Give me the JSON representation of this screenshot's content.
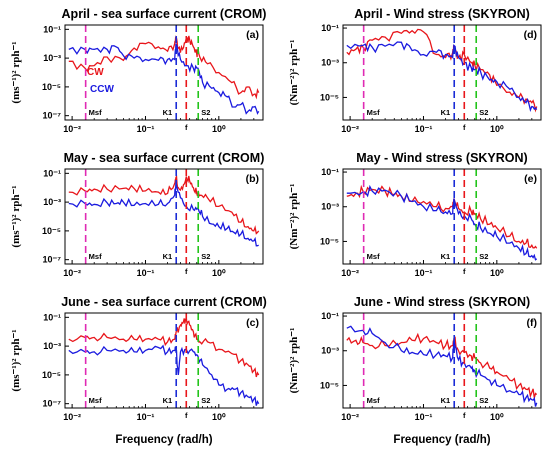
{
  "figure": {
    "xlabel_left": "Frequency (rad/h)",
    "xlabel_right": "Frequency (rad/h)"
  },
  "colors": {
    "cw": "#e8161b",
    "ccw": "#1a1adf",
    "msf": "#e02ab4",
    "k1": "#1a2bd6",
    "f": "#e8161b",
    "s2": "#22c41a"
  },
  "chart_data": [
    {
      "type": "line",
      "panel": "(a)",
      "title": "April - sea surface current (CROM)",
      "ylabel": "(ms⁻¹)² rph⁻¹",
      "xscale": "log",
      "yscale": "log",
      "xlim": [
        0.008,
        4
      ],
      "ylim": [
        5e-08,
        0.2
      ],
      "xticks": [
        "10⁻²",
        "10⁻¹",
        "10⁰"
      ],
      "yticks": [
        "10⁻¹",
        "10⁻³",
        "10⁻⁵",
        "10⁻⁷"
      ],
      "vlines": [
        {
          "label": "Msf",
          "x": 0.0153,
          "color_key": "msf"
        },
        {
          "label": "K1",
          "x": 0.2625,
          "color_key": "k1"
        },
        {
          "label": "f",
          "x": 0.36,
          "color_key": "f"
        },
        {
          "label": "S2",
          "x": 0.5236,
          "color_key": "s2"
        }
      ],
      "legend": [
        {
          "label": "CW",
          "color_key": "cw"
        },
        {
          "label": "CCW",
          "color_key": "ccw"
        }
      ],
      "series": [
        {
          "name": "CW",
          "color_key": "cw",
          "x": [
            0.009,
            0.015,
            0.02,
            0.03,
            0.05,
            0.07,
            0.1,
            0.15,
            0.2,
            0.25,
            0.26,
            0.28,
            0.32,
            0.36,
            0.4,
            0.45,
            0.5,
            0.52,
            0.55,
            0.7,
            1.0,
            1.5,
            2.0,
            2.5,
            3.0,
            3.5
          ],
          "y": [
            0.0006,
            0.0002,
            0.0003,
            0.0012,
            0.0007,
            0.005,
            0.01,
            0.006,
            0.003,
            0.01,
            0.03,
            0.005,
            0.004,
            0.025,
            0.02,
            0.006,
            0.002,
            0.003,
            0.0012,
            0.0004,
            0.0001,
            2e-05,
            4e-06,
            1e-05,
            3e-06,
            4e-06
          ]
        },
        {
          "name": "CCW",
          "color_key": "ccw",
          "x": [
            0.009,
            0.015,
            0.02,
            0.03,
            0.04,
            0.05,
            0.07,
            0.1,
            0.15,
            0.2,
            0.25,
            0.26,
            0.3,
            0.36,
            0.45,
            0.52,
            0.6,
            0.8,
            1.0,
            1.3,
            1.6,
            2.0,
            2.5,
            3.0,
            3.5
          ],
          "y": [
            0.004,
            0.004,
            0.004,
            0.004,
            0.006,
            0.0015,
            0.001,
            0.0008,
            0.0007,
            0.0008,
            0.0008,
            0.01,
            0.0008,
            0.0003,
            0.0002,
            0.0002,
            2e-05,
            8e-06,
            4e-06,
            2e-06,
            4e-07,
            6e-07,
            2e-07,
            4e-07,
            2e-07
          ]
        }
      ]
    },
    {
      "type": "line",
      "panel": "(b)",
      "title": "May - sea surface current (CROM)",
      "ylabel": "(ms⁻¹)² rph⁻¹",
      "xscale": "log",
      "yscale": "log",
      "xlim": [
        0.008,
        4
      ],
      "ylim": [
        5e-08,
        0.2
      ],
      "xticks": [
        "10⁻²",
        "10⁻¹",
        "10⁰"
      ],
      "yticks": [
        "10⁻¹",
        "10⁻³",
        "10⁻⁵",
        "10⁻⁷"
      ],
      "vlines": [
        {
          "label": "Msf",
          "x": 0.0153,
          "color_key": "msf"
        },
        {
          "label": "K1",
          "x": 0.2625,
          "color_key": "k1"
        },
        {
          "label": "f",
          "x": 0.36,
          "color_key": "f"
        },
        {
          "label": "S2",
          "x": 0.5236,
          "color_key": "s2"
        }
      ],
      "series": [
        {
          "name": "CW",
          "color_key": "cw",
          "x": [
            0.009,
            0.015,
            0.02,
            0.03,
            0.05,
            0.07,
            0.1,
            0.15,
            0.2,
            0.25,
            0.26,
            0.28,
            0.32,
            0.36,
            0.4,
            0.45,
            0.5,
            0.55,
            0.7,
            1.0,
            1.5,
            2.0,
            2.5,
            3.0,
            3.5
          ],
          "y": [
            0.005,
            0.006,
            0.008,
            0.008,
            0.009,
            0.009,
            0.006,
            0.005,
            0.004,
            0.02,
            0.05,
            0.01,
            0.008,
            0.06,
            0.03,
            0.01,
            0.004,
            0.003,
            0.002,
            0.0005,
            0.0002,
            4e-05,
            2e-05,
            1e-05,
            1e-05
          ]
        },
        {
          "name": "CCW",
          "color_key": "ccw",
          "x": [
            0.009,
            0.015,
            0.02,
            0.03,
            0.04,
            0.05,
            0.07,
            0.1,
            0.15,
            0.2,
            0.25,
            0.26,
            0.3,
            0.36,
            0.45,
            0.52,
            0.6,
            0.8,
            1.0,
            1.3,
            1.6,
            2.0,
            2.5,
            3.0,
            3.5
          ],
          "y": [
            0.0008,
            0.0008,
            0.0007,
            0.0009,
            0.0008,
            0.001,
            0.0006,
            0.0008,
            0.0007,
            0.0008,
            0.003,
            0.02,
            0.002,
            0.0005,
            0.0003,
            0.0004,
            0.0001,
            3e-05,
            2e-05,
            1.5e-05,
            8e-06,
            6e-06,
            3e-06,
            2e-06,
            1e-06
          ]
        }
      ]
    },
    {
      "type": "line",
      "panel": "(c)",
      "title": "June - sea surface current (CROM)",
      "ylabel": "(ms⁻¹)² rph⁻¹",
      "xscale": "log",
      "yscale": "log",
      "xlim": [
        0.008,
        4
      ],
      "ylim": [
        5e-08,
        0.2
      ],
      "xticks": [
        "10⁻²",
        "10⁻¹",
        "10⁰"
      ],
      "yticks": [
        "10⁻¹",
        "10⁻³",
        "10⁻⁵",
        "10⁻⁷"
      ],
      "vlines": [
        {
          "label": "Msf",
          "x": 0.0153,
          "color_key": "msf"
        },
        {
          "label": "K1",
          "x": 0.2625,
          "color_key": "k1"
        },
        {
          "label": "f",
          "x": 0.36,
          "color_key": "f"
        },
        {
          "label": "S2",
          "x": 0.5236,
          "color_key": "s2"
        }
      ],
      "series": [
        {
          "name": "CW",
          "color_key": "cw",
          "x": [
            0.009,
            0.015,
            0.02,
            0.03,
            0.05,
            0.07,
            0.1,
            0.15,
            0.2,
            0.25,
            0.26,
            0.3,
            0.33,
            0.36,
            0.4,
            0.45,
            0.5,
            0.55,
            0.7,
            1.0,
            1.5,
            2.0,
            2.5,
            3.0,
            3.5
          ],
          "y": [
            0.003,
            0.004,
            0.004,
            0.004,
            0.003,
            0.003,
            0.003,
            0.003,
            0.002,
            0.003,
            0.008,
            0.03,
            0.05,
            0.08,
            0.03,
            0.01,
            0.003,
            0.002,
            0.002,
            0.0006,
            0.0003,
            0.0001,
            5e-05,
            2e-05,
            1e-05
          ]
        },
        {
          "name": "CCW",
          "color_key": "ccw",
          "x": [
            0.009,
            0.015,
            0.02,
            0.03,
            0.05,
            0.07,
            0.1,
            0.15,
            0.2,
            0.25,
            0.26,
            0.28,
            0.3,
            0.36,
            0.45,
            0.52,
            0.6,
            0.8,
            1.0,
            1.3,
            1.6,
            2.0,
            2.5,
            3.0,
            3.5
          ],
          "y": [
            0.0005,
            0.0004,
            0.0004,
            0.0005,
            0.0005,
            0.0004,
            0.0005,
            0.0008,
            0.0004,
            0.0005,
            0.0008,
            1e-05,
            0.0004,
            0.0006,
            0.0004,
            0.0002,
            5e-05,
            1e-05,
            2e-06,
            1e-06,
            1e-06,
            6e-07,
            3e-07,
            2e-07,
            1e-07
          ]
        }
      ]
    },
    {
      "type": "line",
      "panel": "(d)",
      "title": "April - Wind stress (SKYRON)",
      "ylabel": "(Nm⁻²)² rph⁻¹",
      "xscale": "log",
      "yscale": "log",
      "xlim": [
        0.008,
        4
      ],
      "ylim": [
        5e-07,
        0.15
      ],
      "xticks": [
        "10⁻²",
        "10⁻¹",
        "10⁰"
      ],
      "yticks": [
        "10⁻¹",
        "10⁻³",
        "10⁻⁵"
      ],
      "vlines": [
        {
          "label": "Msf",
          "x": 0.0153,
          "color_key": "msf"
        },
        {
          "label": "K1",
          "x": 0.2625,
          "color_key": "k1"
        },
        {
          "label": "f",
          "x": 0.36,
          "color_key": "f"
        },
        {
          "label": "S2",
          "x": 0.5236,
          "color_key": "s2"
        }
      ],
      "series": [
        {
          "name": "CW",
          "color_key": "cw",
          "x": [
            0.009,
            0.012,
            0.015,
            0.02,
            0.03,
            0.05,
            0.07,
            0.1,
            0.15,
            0.2,
            0.25,
            0.26,
            0.3,
            0.36,
            0.45,
            0.5,
            0.6,
            0.8,
            1.0,
            1.5,
            2.0,
            2.5,
            3.0,
            3.5
          ],
          "y": [
            0.004,
            0.006,
            0.008,
            0.02,
            0.03,
            0.05,
            0.07,
            0.06,
            0.003,
            0.002,
            0.004,
            0.008,
            0.002,
            0.003,
            0.001,
            0.0008,
            0.0004,
            0.0002,
            5e-05,
            2e-05,
            1e-05,
            8e-06,
            5e-06,
            3e-06
          ]
        },
        {
          "name": "CCW",
          "color_key": "ccw",
          "x": [
            0.009,
            0.015,
            0.02,
            0.03,
            0.05,
            0.07,
            0.1,
            0.15,
            0.2,
            0.25,
            0.26,
            0.3,
            0.36,
            0.45,
            0.5,
            0.6,
            0.8,
            1.0,
            1.5,
            2.0,
            2.5,
            3.0,
            3.5
          ],
          "y": [
            0.01,
            0.01,
            0.008,
            0.009,
            0.015,
            0.005,
            0.003,
            0.004,
            0.003,
            0.002,
            0.01,
            0.002,
            0.001,
            0.0005,
            0.0004,
            0.0003,
            0.0001,
            8e-05,
            3e-05,
            1e-05,
            5e-06,
            3e-06,
            2e-06
          ]
        }
      ]
    },
    {
      "type": "line",
      "panel": "(e)",
      "title": "May - Wind stress (SKYRON)",
      "ylabel": "(Nm⁻²)² rph⁻¹",
      "xscale": "log",
      "yscale": "log",
      "xlim": [
        0.008,
        4
      ],
      "ylim": [
        5e-07,
        0.15
      ],
      "xticks": [
        "10⁻²",
        "10⁻¹",
        "10⁰"
      ],
      "yticks": [
        "10⁻¹",
        "10⁻³",
        "10⁻⁵"
      ],
      "vlines": [
        {
          "label": "Msf",
          "x": 0.0153,
          "color_key": "msf"
        },
        {
          "label": "K1",
          "x": 0.2625,
          "color_key": "k1"
        },
        {
          "label": "f",
          "x": 0.36,
          "color_key": "f"
        },
        {
          "label": "S2",
          "x": 0.5236,
          "color_key": "s2"
        }
      ],
      "series": [
        {
          "name": "CW",
          "color_key": "cw",
          "x": [
            0.009,
            0.012,
            0.015,
            0.02,
            0.03,
            0.04,
            0.05,
            0.07,
            0.1,
            0.15,
            0.2,
            0.25,
            0.26,
            0.3,
            0.36,
            0.45,
            0.5,
            0.6,
            0.8,
            1.0,
            1.5,
            2.0,
            2.5,
            3.0,
            3.5
          ],
          "y": [
            0.004,
            0.006,
            0.008,
            0.01,
            0.008,
            0.005,
            0.004,
            0.002,
            0.002,
            0.001,
            0.0008,
            0.001,
            0.003,
            0.0008,
            0.0005,
            0.0005,
            0.0004,
            0.0002,
            0.0001,
            6e-05,
            2e-05,
            1e-05,
            8e-06,
            6e-06,
            4e-06
          ]
        },
        {
          "name": "CCW",
          "color_key": "ccw",
          "x": [
            0.009,
            0.015,
            0.02,
            0.03,
            0.05,
            0.07,
            0.1,
            0.15,
            0.2,
            0.25,
            0.26,
            0.3,
            0.36,
            0.45,
            0.5,
            0.6,
            0.8,
            1.0,
            1.5,
            2.0,
            2.5,
            3.0,
            3.5
          ],
          "y": [
            0.006,
            0.007,
            0.008,
            0.009,
            0.004,
            0.002,
            0.001,
            0.0006,
            0.0005,
            0.0004,
            0.003,
            0.0004,
            0.0003,
            0.0002,
            0.0001,
            6e-05,
            3e-05,
            2e-05,
            8e-06,
            4e-06,
            2e-06,
            1.5e-06,
            1e-06
          ]
        }
      ]
    },
    {
      "type": "line",
      "panel": "(f)",
      "title": "June - Wind stress (SKYRON)",
      "ylabel": "(Nm⁻²)² rph⁻¹",
      "xscale": "log",
      "yscale": "log",
      "xlim": [
        0.008,
        4
      ],
      "ylim": [
        5e-07,
        0.15
      ],
      "xticks": [
        "10⁻²",
        "10⁻¹",
        "10⁰"
      ],
      "yticks": [
        "10⁻¹",
        "10⁻³",
        "10⁻⁵"
      ],
      "vlines": [
        {
          "label": "Msf",
          "x": 0.0153,
          "color_key": "msf"
        },
        {
          "label": "K1",
          "x": 0.2625,
          "color_key": "k1"
        },
        {
          "label": "f",
          "x": 0.36,
          "color_key": "f"
        },
        {
          "label": "S2",
          "x": 0.5236,
          "color_key": "s2"
        }
      ],
      "series": [
        {
          "name": "CW",
          "color_key": "cw",
          "x": [
            0.009,
            0.012,
            0.015,
            0.02,
            0.03,
            0.05,
            0.07,
            0.1,
            0.15,
            0.2,
            0.25,
            0.26,
            0.3,
            0.36,
            0.45,
            0.5,
            0.6,
            0.8,
            1.0,
            1.5,
            2.0,
            2.5,
            3.0,
            3.5
          ],
          "y": [
            0.004,
            0.004,
            0.003,
            0.002,
            0.002,
            0.003,
            0.004,
            0.005,
            0.003,
            0.002,
            0.002,
            0.005,
            0.001,
            0.0008,
            0.0005,
            0.0004,
            0.0002,
            0.0001,
            6e-05,
            2e-05,
            1e-05,
            6e-06,
            4e-06,
            3e-06
          ]
        },
        {
          "name": "CCW",
          "color_key": "ccw",
          "x": [
            0.009,
            0.015,
            0.02,
            0.03,
            0.05,
            0.07,
            0.1,
            0.15,
            0.2,
            0.25,
            0.26,
            0.3,
            0.36,
            0.45,
            0.5,
            0.6,
            0.8,
            1.0,
            1.5,
            2.0,
            2.5,
            3.0,
            3.5
          ],
          "y": [
            0.02,
            0.015,
            0.01,
            0.003,
            0.001,
            0.0008,
            0.0006,
            0.0006,
            0.0005,
            0.0004,
            0.004,
            0.0003,
            0.0002,
            0.0001,
            7e-05,
            4e-05,
            2e-05,
            1e-05,
            5e-06,
            3e-06,
            2e-06,
            1.5e-06,
            1e-06
          ]
        }
      ]
    }
  ]
}
